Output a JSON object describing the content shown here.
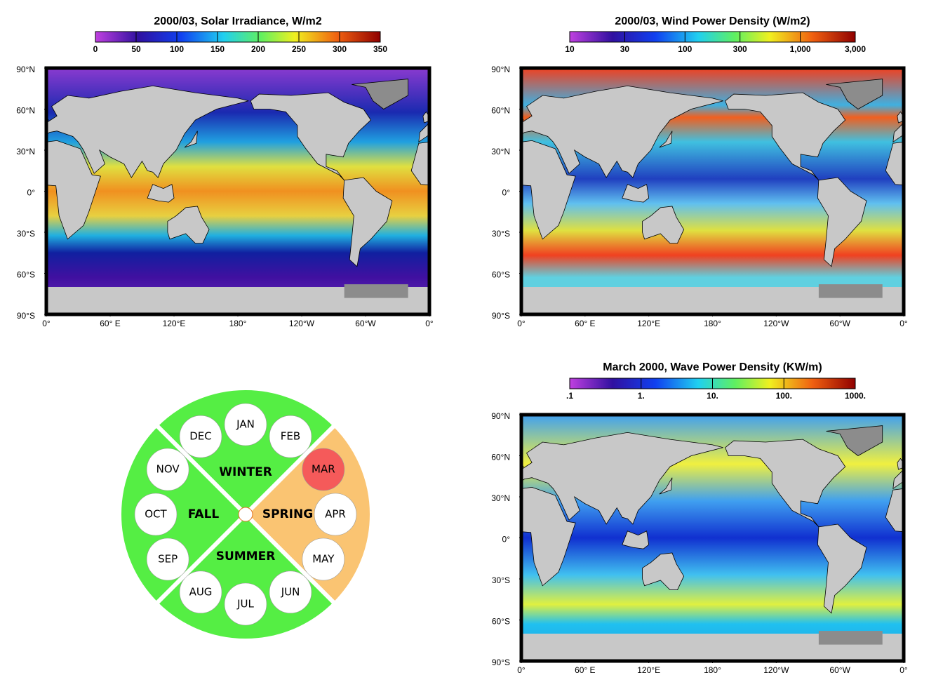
{
  "maps": [
    {
      "title": "2000/03, Solar Irradiance, W/m2",
      "colorbar": {
        "lim": [
          0,
          350
        ],
        "log": false,
        "ticks": [
          0,
          50,
          100,
          150,
          200,
          250,
          300,
          350
        ]
      },
      "lat_ticks": [
        {
          "value": 90,
          "label": "90°N"
        },
        {
          "value": 60,
          "label": "60°N"
        },
        {
          "value": 30,
          "label": "30°N"
        },
        {
          "value": 0,
          "label": "0°"
        },
        {
          "value": -30,
          "label": "30°S"
        },
        {
          "value": -60,
          "label": "60°S"
        },
        {
          "value": -90,
          "label": "90°S"
        }
      ],
      "lon_ticks": [
        {
          "value": 0,
          "label": "0°"
        },
        {
          "value": 60,
          "label": "60° E"
        },
        {
          "value": 120,
          "label": "120°E"
        },
        {
          "value": 180,
          "label": "180°"
        },
        {
          "value": 240,
          "label": "120°W"
        },
        {
          "value": 300,
          "label": "60°W"
        },
        {
          "value": 360,
          "label": "0°"
        }
      ]
    },
    {
      "title": "2000/03, Wind Power Density (W/m2)",
      "colorbar": {
        "lim": [
          10,
          3000
        ],
        "log": true,
        "ticks": [
          10,
          30,
          100,
          300,
          {
            "value": 1000,
            "label": "1,000"
          },
          {
            "value": 3000,
            "label": "3,000"
          }
        ]
      },
      "lat_ticks": [
        {
          "value": 90,
          "label": "90°N"
        },
        {
          "value": 60,
          "label": "60°N"
        },
        {
          "value": 30,
          "label": "30°N"
        },
        {
          "value": 0,
          "label": "0°"
        },
        {
          "value": -30,
          "label": "30°S"
        },
        {
          "value": -60,
          "label": "60°S"
        },
        {
          "value": -90,
          "label": "90°S"
        }
      ],
      "lon_ticks": [
        {
          "value": 0,
          "label": "0°"
        },
        {
          "value": 60,
          "label": "60° E"
        },
        {
          "value": 120,
          "label": "120°E"
        },
        {
          "value": 180,
          "label": "180°"
        },
        {
          "value": 240,
          "label": "120°W"
        },
        {
          "value": 300,
          "label": "60°W"
        },
        {
          "value": 360,
          "label": "0°"
        }
      ]
    },
    {
      "title": "March 2000, Wave Power Density (KW/m)",
      "colorbar": {
        "lim": [
          0.1,
          1000
        ],
        "log": true,
        "ticks": [
          {
            "value": 0.1,
            "label": ".1"
          },
          {
            "value": 1,
            "label": "1."
          },
          {
            "value": 10,
            "label": "10."
          },
          {
            "value": 100,
            "label": "100."
          },
          {
            "value": 1000,
            "label": "1000."
          }
        ]
      },
      "lat_ticks": [
        {
          "value": 90,
          "label": "90°N"
        },
        {
          "value": 60,
          "label": "60°N"
        },
        {
          "value": 30,
          "label": "30°N"
        },
        {
          "value": 0,
          "label": "0°"
        },
        {
          "value": -30,
          "label": "30°S"
        },
        {
          "value": -60,
          "label": "60°S"
        },
        {
          "value": -90,
          "label": "90°S"
        }
      ],
      "lon_ticks": [
        {
          "value": 0,
          "label": "0°"
        },
        {
          "value": 60,
          "label": "60° E"
        },
        {
          "value": 120,
          "label": "120°E"
        },
        {
          "value": 180,
          "label": "180°"
        },
        {
          "value": 240,
          "label": "120°W"
        },
        {
          "value": 300,
          "label": "60°W"
        },
        {
          "value": 360,
          "label": "0°"
        }
      ]
    }
  ],
  "wheel": {
    "highlight": "MAR",
    "seasons": [
      {
        "name": "WINTER",
        "months": [
          "DEC",
          "JAN",
          "FEB"
        ]
      },
      {
        "name": "SPRING",
        "months": [
          "MAR",
          "APR",
          "MAY"
        ]
      },
      {
        "name": "SUMMER",
        "months": [
          "JUN",
          "JUL",
          "AUG"
        ]
      },
      {
        "name": "FALL",
        "months": [
          "SEP",
          "OCT",
          "NOV"
        ]
      }
    ]
  }
}
